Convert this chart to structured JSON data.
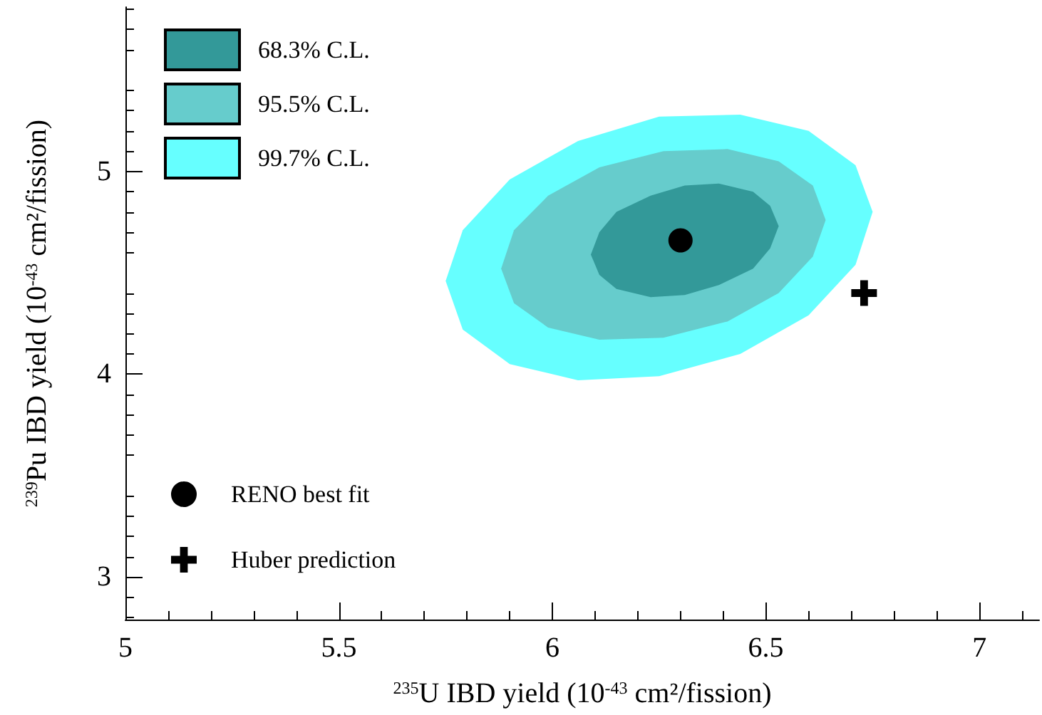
{
  "chart_data": {
    "type": "area",
    "xlabel": "$^{235}$U IBD yield (10$^{-43}$ cm²/fission)",
    "ylabel": "$^{239}$Pu IBD yield (10$^{-43}$ cm²/fission)",
    "xlim": [
      5,
      7.14
    ],
    "xticks": [
      5,
      5.5,
      6,
      6.5,
      7
    ],
    "ylim": [
      2.79,
      5.81
    ],
    "yticks": [
      3,
      4,
      5
    ],
    "grid": false,
    "legend": "top left",
    "series": [
      {
        "name": "99.7% C.L.",
        "color": "#66ffff",
        "x": [
          6.75,
          6.71,
          6.6,
          6.44,
          6.25,
          6.06,
          5.9,
          5.79,
          5.75,
          5.79,
          5.9,
          6.06,
          6.25,
          6.44,
          6.6,
          6.71
        ],
        "values": [
          4.8,
          5.03,
          5.2,
          5.28,
          5.27,
          5.15,
          4.96,
          4.71,
          4.46,
          4.22,
          4.05,
          3.97,
          3.99,
          4.1,
          4.29,
          4.54
        ]
      },
      {
        "name": "95.5% C.L.",
        "color": "#66cccc",
        "x": [
          6.64,
          6.61,
          6.53,
          6.41,
          6.26,
          6.11,
          5.99,
          5.91,
          5.88,
          5.91,
          5.99,
          6.11,
          6.26,
          6.41,
          6.53,
          6.61
        ],
        "values": [
          4.76,
          4.93,
          5.05,
          5.11,
          5.1,
          5.02,
          4.88,
          4.71,
          4.52,
          4.35,
          4.23,
          4.17,
          4.18,
          4.26,
          4.4,
          4.58
        ]
      },
      {
        "name": "68.3% C.L.",
        "color": "#339999",
        "x": [
          6.53,
          6.51,
          6.47,
          6.39,
          6.31,
          6.23,
          6.15,
          6.11,
          6.09,
          6.11,
          6.15,
          6.23,
          6.31,
          6.39,
          6.47,
          6.51
        ],
        "values": [
          4.73,
          4.83,
          4.9,
          4.94,
          4.93,
          4.88,
          4.8,
          4.7,
          4.59,
          4.49,
          4.42,
          4.38,
          4.39,
          4.44,
          4.52,
          4.62
        ]
      },
      {
        "name": "RENO best fit",
        "type": "scatter",
        "marker": "circle",
        "color": "#000000",
        "x": [
          6.3
        ],
        "values": [
          4.66
        ]
      },
      {
        "name": "Huber prediction",
        "type": "scatter",
        "marker": "cross",
        "color": "#000000",
        "x": [
          6.73
        ],
        "values": [
          4.4
        ]
      }
    ]
  }
}
